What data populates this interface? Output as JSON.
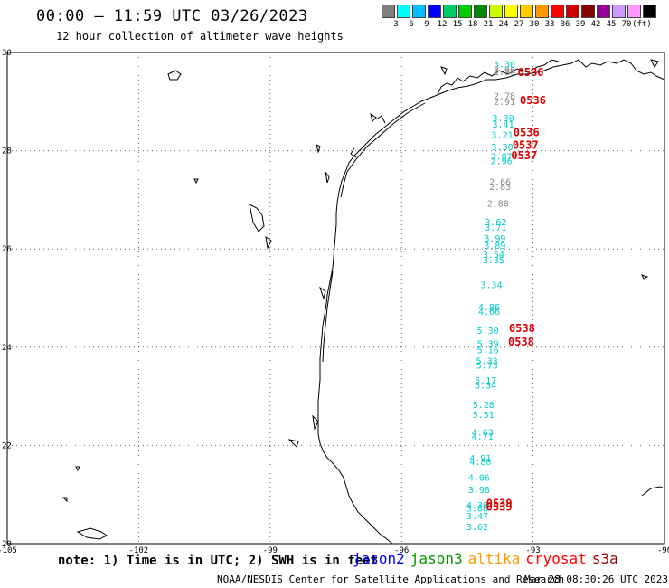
{
  "header": {
    "title": "00:00 — 11:59 UTC 03/26/2023",
    "subtitle": "12 hour collection of altimeter wave heights"
  },
  "legend": {
    "colors": [
      "#7f7f7f",
      "#00ffff",
      "#00bfff",
      "#0000ff",
      "#00cc66",
      "#00cc00",
      "#008800",
      "#ccff00",
      "#ffff00",
      "#ffcc00",
      "#ff9900",
      "#ff0000",
      "#cc0000",
      "#880000",
      "#990099",
      "#cc99ff",
      "#ff99ff",
      "#000000"
    ],
    "labels": [
      "3",
      "6",
      "9",
      "12",
      "15",
      "18",
      "21",
      "24",
      "27",
      "30",
      "33",
      "36",
      "39",
      "42",
      "45",
      "70",
      "(ft)"
    ]
  },
  "axes": {
    "x_ticks": [
      "-105",
      "-102",
      "-99",
      "-96",
      "-93",
      "-90"
    ],
    "y_ticks": [
      "30",
      "28",
      "26",
      "24",
      "22",
      "20"
    ],
    "x_range": [
      -105,
      -90
    ],
    "y_range": [
      20,
      30
    ]
  },
  "footer": {
    "note": "note: 1) Time is in UTC; 2) SWH is in feet",
    "missions": [
      {
        "name": "jason2",
        "color": "#0000ff"
      },
      {
        "name": "jason3",
        "color": "#009900"
      },
      {
        "name": "altika",
        "color": "#ff9900"
      },
      {
        "name": "cryosat",
        "color": "#ff0000"
      },
      {
        "name": "s3a",
        "color": "#990000"
      }
    ],
    "credit": "NOAA/NESDIS Center for Satellite Applications and Research",
    "timestamp": "Mar 28 08:30:26 UTC 2023"
  },
  "wave_heights": [
    {
      "lon": -93.9,
      "lat": 29.7,
      "v": "3.30",
      "c": "#00cccc"
    },
    {
      "lon": -93.9,
      "lat": 29.58,
      "v": "2.98",
      "c": "#888888"
    },
    {
      "lon": -93.9,
      "lat": 29.54,
      "v": "1.86",
      "c": "#888888"
    },
    {
      "lon": -93.9,
      "lat": 29.05,
      "v": "2.78",
      "c": "#888888"
    },
    {
      "lon": -93.9,
      "lat": 28.93,
      "v": "2.91",
      "c": "#888888"
    },
    {
      "lon": -93.93,
      "lat": 28.6,
      "v": "3.30",
      "c": "#00cccc"
    },
    {
      "lon": -93.93,
      "lat": 28.47,
      "v": "3.41",
      "c": "#00cccc"
    },
    {
      "lon": -93.95,
      "lat": 28.26,
      "v": "3.21",
      "c": "#00cccc"
    },
    {
      "lon": -93.95,
      "lat": 28.01,
      "v": "3.30",
      "c": "#00cccc"
    },
    {
      "lon": -93.97,
      "lat": 27.82,
      "v": "3.07",
      "c": "#00cccc"
    },
    {
      "lon": -93.97,
      "lat": 27.73,
      "v": "2.96",
      "c": "#00cccc"
    },
    {
      "lon": -94.0,
      "lat": 27.3,
      "v": "2.66",
      "c": "#888888"
    },
    {
      "lon": -94.0,
      "lat": 27.2,
      "v": "2.83",
      "c": "#888888"
    },
    {
      "lon": -94.05,
      "lat": 26.86,
      "v": "2.88",
      "c": "#888888"
    },
    {
      "lon": -94.1,
      "lat": 26.48,
      "v": "3.62",
      "c": "#00cccc"
    },
    {
      "lon": -94.1,
      "lat": 26.37,
      "v": "3.71",
      "c": "#00cccc"
    },
    {
      "lon": -94.12,
      "lat": 26.15,
      "v": "3.99",
      "c": "#00cccc"
    },
    {
      "lon": -94.12,
      "lat": 26.0,
      "v": "3.89",
      "c": "#00cccc"
    },
    {
      "lon": -94.15,
      "lat": 25.82,
      "v": "3.54",
      "c": "#00cccc"
    },
    {
      "lon": -94.15,
      "lat": 25.71,
      "v": "3.35",
      "c": "#00cccc"
    },
    {
      "lon": -94.2,
      "lat": 25.2,
      "v": "3.34",
      "c": "#00cccc"
    },
    {
      "lon": -94.25,
      "lat": 24.75,
      "v": "4.86",
      "c": "#00cccc"
    },
    {
      "lon": -94.25,
      "lat": 24.66,
      "v": "4.66",
      "c": "#00cccc"
    },
    {
      "lon": -94.28,
      "lat": 24.27,
      "v": "5.30",
      "c": "#00cccc"
    },
    {
      "lon": -94.28,
      "lat": 24.01,
      "v": "5.39",
      "c": "#00cccc"
    },
    {
      "lon": -94.28,
      "lat": 23.88,
      "v": "5.16",
      "c": "#00cccc"
    },
    {
      "lon": -94.3,
      "lat": 23.66,
      "v": "5.33",
      "c": "#00cccc"
    },
    {
      "lon": -94.3,
      "lat": 23.56,
      "v": "5.73",
      "c": "#00cccc"
    },
    {
      "lon": -94.33,
      "lat": 23.26,
      "v": "5.17",
      "c": "#00cccc"
    },
    {
      "lon": -94.33,
      "lat": 23.16,
      "v": "5.34",
      "c": "#00cccc"
    },
    {
      "lon": -94.38,
      "lat": 22.76,
      "v": "5.28",
      "c": "#00cccc"
    },
    {
      "lon": -94.38,
      "lat": 22.56,
      "v": "5.51",
      "c": "#00cccc"
    },
    {
      "lon": -94.4,
      "lat": 22.2,
      "v": "4.63",
      "c": "#00cccc"
    },
    {
      "lon": -94.4,
      "lat": 22.12,
      "v": "4.71",
      "c": "#00cccc"
    },
    {
      "lon": -94.45,
      "lat": 21.68,
      "v": "4.91",
      "c": "#00cccc"
    },
    {
      "lon": -94.45,
      "lat": 21.6,
      "v": "4.80",
      "c": "#00cccc"
    },
    {
      "lon": -94.48,
      "lat": 21.28,
      "v": "4.06",
      "c": "#00cccc"
    },
    {
      "lon": -94.48,
      "lat": 21.03,
      "v": "3.98",
      "c": "#00cccc"
    },
    {
      "lon": -94.52,
      "lat": 20.72,
      "v": "4.38",
      "c": "#00cccc"
    },
    {
      "lon": -94.52,
      "lat": 20.65,
      "v": "3.86",
      "c": "#00cccc"
    },
    {
      "lon": -94.52,
      "lat": 20.5,
      "v": "3.47",
      "c": "#00cccc"
    },
    {
      "lon": -94.52,
      "lat": 20.28,
      "v": "3.62",
      "c": "#00cccc"
    }
  ],
  "pass_times": [
    {
      "lon": -93.35,
      "lat": 29.52,
      "t": "0536"
    },
    {
      "lon": -93.3,
      "lat": 28.95,
      "t": "0536"
    },
    {
      "lon": -93.45,
      "lat": 28.3,
      "t": "0536"
    },
    {
      "lon": -93.47,
      "lat": 28.04,
      "t": "0537"
    },
    {
      "lon": -93.5,
      "lat": 27.83,
      "t": "0537"
    },
    {
      "lon": -93.55,
      "lat": 24.31,
      "t": "0538"
    },
    {
      "lon": -93.57,
      "lat": 24.03,
      "t": "0538"
    },
    {
      "lon": -94.07,
      "lat": 20.75,
      "t": "0539"
    },
    {
      "lon": -94.07,
      "lat": 20.67,
      "t": "0539"
    }
  ]
}
